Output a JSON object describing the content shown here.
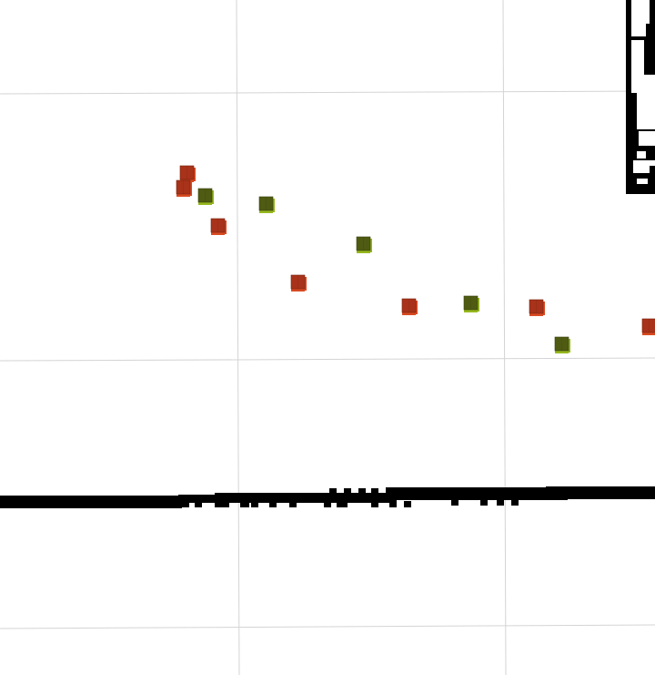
{
  "scene": {
    "background": "#ffffff",
    "grid_color": "#d4d4d4",
    "obstacle_color": "#000000",
    "red_marker": {
      "top": "#a8331a",
      "side": "#d84a22",
      "edge": "#7a2410"
    },
    "green_marker": {
      "top": "#4f5b12",
      "side": "#96b81e",
      "edge": "#3a430c"
    },
    "markers": [
      {
        "kind": "red"
      },
      {
        "kind": "red"
      },
      {
        "kind": "green"
      },
      {
        "kind": "green"
      },
      {
        "kind": "red"
      },
      {
        "kind": "green"
      },
      {
        "kind": "red"
      },
      {
        "kind": "red"
      },
      {
        "kind": "green"
      },
      {
        "kind": "red"
      },
      {
        "kind": "green"
      },
      {
        "kind": "red"
      }
    ]
  }
}
